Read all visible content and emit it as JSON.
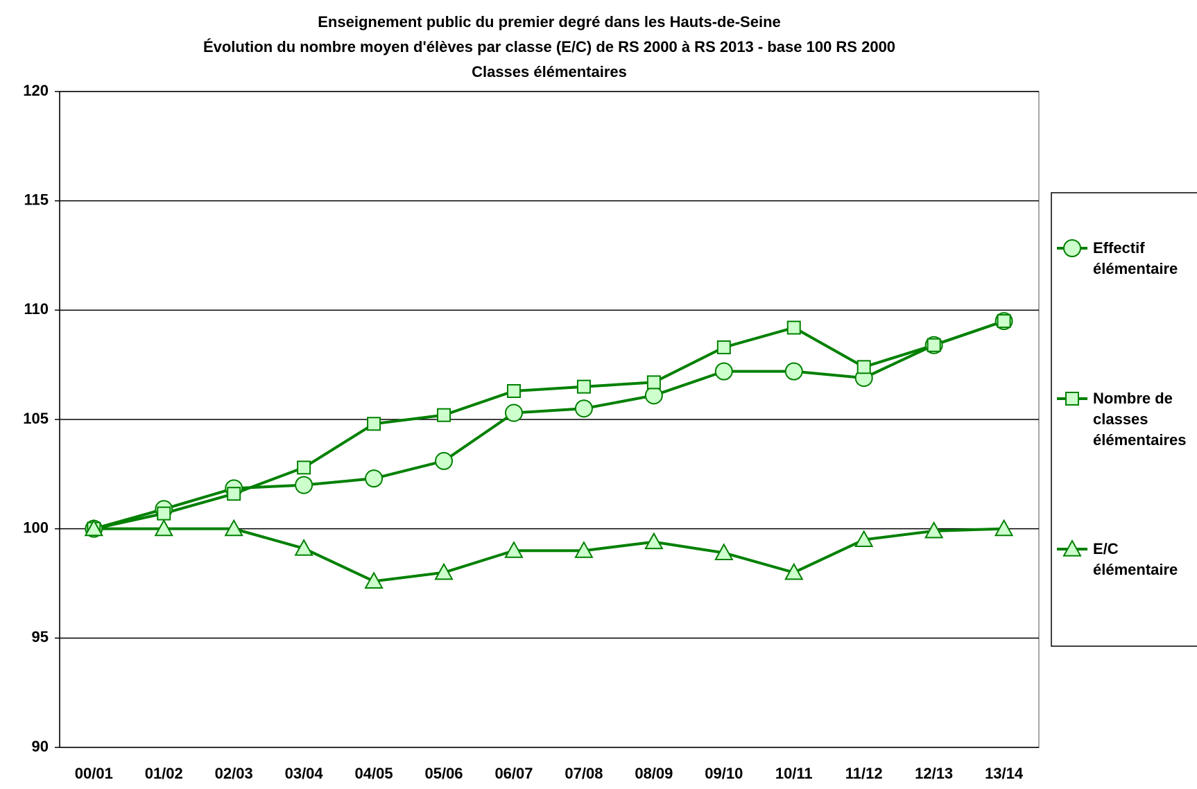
{
  "chart_data": {
    "type": "line",
    "title": [
      "Enseignement public du premier degré dans les Hauts-de-Seine",
      "Évolution du nombre moyen d'élèves par classe (E/C) de RS 2000 à RS 2013 - base 100 RS 2000",
      "Classes élémentaires"
    ],
    "categories": [
      "00/01",
      "01/02",
      "02/03",
      "03/04",
      "04/05",
      "05/06",
      "06/07",
      "07/08",
      "08/09",
      "09/10",
      "10/11",
      "11/12",
      "12/13",
      "13/14"
    ],
    "series": [
      {
        "name": "Effectif élémentaire",
        "color": "#008000",
        "marker": "circle",
        "values": [
          100,
          100.9,
          101.85,
          102.0,
          102.3,
          103.1,
          105.3,
          105.5,
          106.1,
          107.2,
          107.2,
          106.9,
          108.4,
          109.5
        ]
      },
      {
        "name": "Nombre de classes élémentaires",
        "color": "#008000",
        "marker": "square",
        "values": [
          100,
          100.7,
          101.6,
          102.8,
          104.8,
          105.2,
          106.3,
          106.5,
          106.7,
          108.3,
          109.2,
          107.4,
          108.4,
          109.5
        ]
      },
      {
        "name": "E/C élémentaire",
        "color": "#008000",
        "marker": "triangle",
        "values": [
          100,
          100.0,
          100.0,
          99.1,
          97.6,
          98.0,
          99.0,
          99.0,
          99.4,
          98.9,
          98.0,
          99.5,
          99.9,
          100.0
        ]
      }
    ],
    "ylim": [
      90,
      120
    ],
    "yticks": [
      90,
      95,
      100,
      105,
      110,
      115,
      120
    ],
    "grid": true,
    "legend": "right"
  }
}
